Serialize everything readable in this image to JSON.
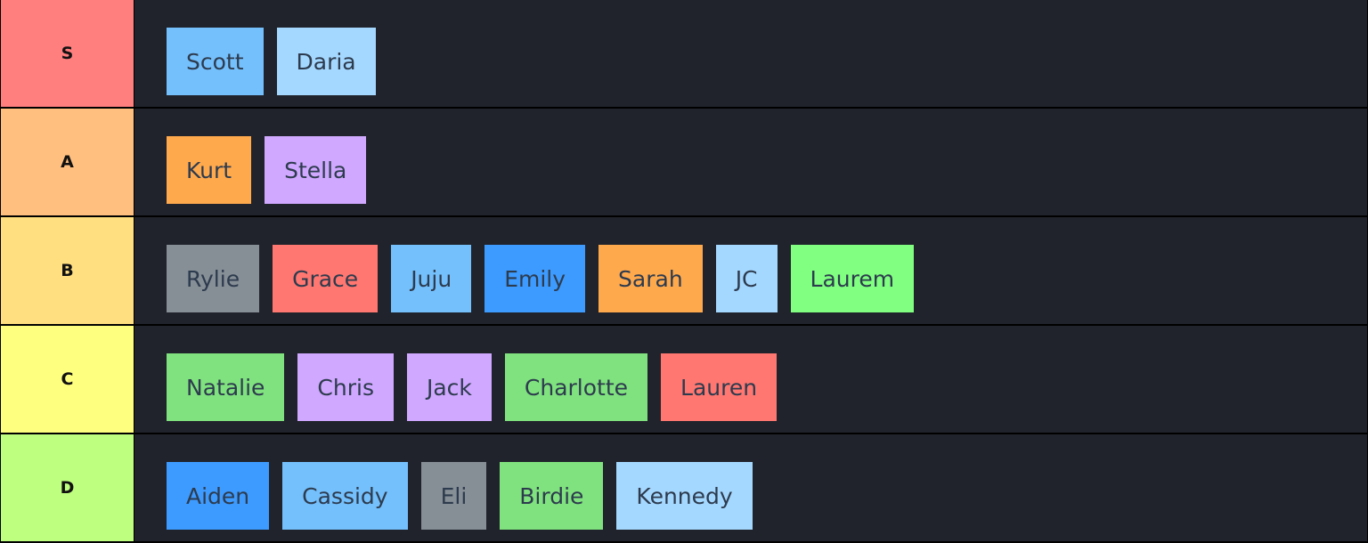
{
  "tiers": [
    {
      "label": "S",
      "color": "#ff7f7f",
      "items": [
        {
          "name": "Scott",
          "color": "#74c0fc"
        },
        {
          "name": "Daria",
          "color": "#a5d8ff"
        }
      ]
    },
    {
      "label": "A",
      "color": "#ffbf7f",
      "items": [
        {
          "name": "Kurt",
          "color": "#ffa94d"
        },
        {
          "name": "Stella",
          "color": "#d0a8ff"
        }
      ]
    },
    {
      "label": "B",
      "color": "#ffdf7f",
      "items": [
        {
          "name": "Rylie",
          "color": "#868e96"
        },
        {
          "name": "Grace",
          "color": "#ff7770"
        },
        {
          "name": "Juju",
          "color": "#74c0fc"
        },
        {
          "name": "Emily",
          "color": "#3d9bff"
        },
        {
          "name": "Sarah",
          "color": "#ffa94d"
        },
        {
          "name": "JC",
          "color": "#a5d8ff"
        },
        {
          "name": "Laurem",
          "color": "#80ff80"
        }
      ]
    },
    {
      "label": "C",
      "color": "#ffff7f",
      "items": [
        {
          "name": "Natalie",
          "color": "#80e27e"
        },
        {
          "name": "Chris",
          "color": "#d0a8ff"
        },
        {
          "name": "Jack",
          "color": "#d0a8ff"
        },
        {
          "name": "Charlotte",
          "color": "#80e27e"
        },
        {
          "name": "Lauren",
          "color": "#ff7770"
        }
      ]
    },
    {
      "label": "D",
      "color": "#bfff7f",
      "items": [
        {
          "name": "Aiden",
          "color": "#3d9bff"
        },
        {
          "name": "Cassidy",
          "color": "#74c0fc"
        },
        {
          "name": "Eli",
          "color": "#868e96"
        },
        {
          "name": "Birdie",
          "color": "#80e27e"
        },
        {
          "name": "Kennedy",
          "color": "#a5d8ff"
        }
      ]
    }
  ]
}
